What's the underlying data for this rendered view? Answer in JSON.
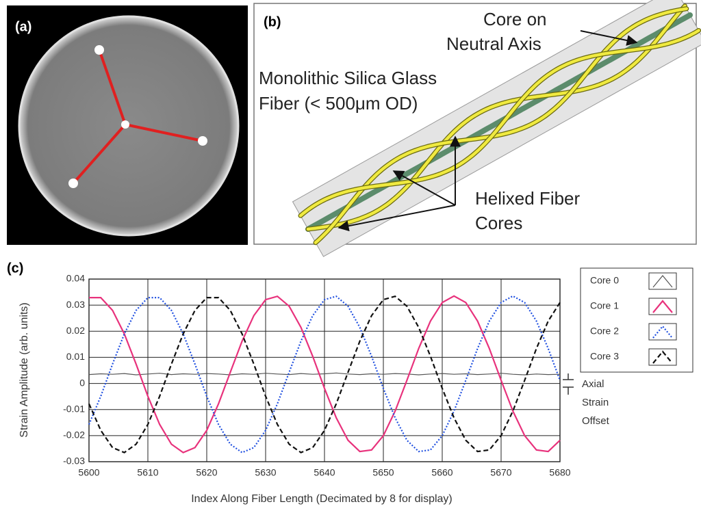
{
  "panel_a": {
    "label": "(a)"
  },
  "panel_b": {
    "label": "(b)",
    "core_label": [
      "Core on",
      "Neutral Axis"
    ],
    "fiber_label": [
      "Monolithic Silica Glass",
      "Fiber (< 500μm OD)"
    ],
    "helix_label": [
      "Helixed Fiber",
      "Cores"
    ]
  },
  "chart_data": {
    "type": "line",
    "label": "(c)",
    "x_label": "Index Along Fiber Length (Decimated by 8 for display)",
    "y_label": "Strain Amplitude (arb. units)",
    "annotation": [
      "Axial",
      "Strain",
      "Offset"
    ],
    "xlim": [
      5600,
      5680
    ],
    "xticks": [
      5600,
      5610,
      5620,
      5630,
      5640,
      5650,
      5660,
      5670,
      5680
    ],
    "ylim": [
      -0.03,
      0.04
    ],
    "yticks": [
      -0.03,
      -0.02,
      -0.01,
      0,
      0.01,
      0.02,
      0.03,
      0.04
    ],
    "grid": true,
    "legend": "right",
    "x": [
      5600,
      5602,
      5604,
      5606,
      5608,
      5610,
      5612,
      5614,
      5616,
      5618,
      5620,
      5622,
      5624,
      5626,
      5628,
      5630,
      5632,
      5634,
      5636,
      5638,
      5640,
      5642,
      5644,
      5646,
      5648,
      5650,
      5652,
      5654,
      5656,
      5658,
      5660,
      5662,
      5664,
      5666,
      5668,
      5670,
      5672,
      5674,
      5676,
      5678,
      5680
    ],
    "series": [
      {
        "name": "Core 0",
        "color": "#555555",
        "style": "solid",
        "values": [
          0.0034,
          0.0037,
          0.0035,
          0.0038,
          0.0033,
          0.0036,
          0.0039,
          0.0034,
          0.0037,
          0.0035,
          0.0038,
          0.0036,
          0.0033,
          0.0037,
          0.0035,
          0.0039,
          0.0036,
          0.0034,
          0.0038,
          0.0035,
          0.0037,
          0.004,
          0.0036,
          0.0034,
          0.0037,
          0.0035,
          0.0038,
          0.0036,
          0.0033,
          0.0036,
          0.0038,
          0.0035,
          0.0037,
          0.0034,
          0.0036,
          0.0039,
          0.0035,
          0.0033,
          0.0036,
          0.0034,
          0.0035
        ]
      },
      {
        "name": "Core 1",
        "color": "#e8327c",
        "style": "solid",
        "values": [
          0.0329,
          0.0329,
          0.028,
          0.019,
          0.0074,
          -0.0049,
          -0.0157,
          -0.0233,
          -0.0265,
          -0.0246,
          -0.018,
          -0.0078,
          0.0043,
          0.0162,
          0.026,
          0.0321,
          0.0334,
          0.0296,
          0.0215,
          0.0104,
          -0.0019,
          -0.0132,
          -0.0218,
          -0.0261,
          -0.0255,
          -0.02,
          -0.0106,
          0.0012,
          0.0134,
          0.0239,
          0.031,
          0.0335,
          0.031,
          0.0239,
          0.0134,
          0.0012,
          -0.0106,
          -0.02,
          -0.0255,
          -0.0261,
          -0.0218
        ]
      },
      {
        "name": "Core 2",
        "color": "#1f4fe0",
        "style": "dotted",
        "values": [
          -0.0157,
          -0.0049,
          0.0074,
          0.019,
          0.028,
          0.0329,
          0.0329,
          0.028,
          0.019,
          0.0074,
          -0.0049,
          -0.0157,
          -0.0233,
          -0.0265,
          -0.0246,
          -0.018,
          -0.0078,
          0.0043,
          0.0162,
          0.026,
          0.0321,
          0.0334,
          0.0296,
          0.0215,
          0.0104,
          -0.0019,
          -0.0132,
          -0.0218,
          -0.0261,
          -0.0255,
          -0.02,
          -0.0106,
          0.0012,
          0.0134,
          0.0239,
          0.031,
          0.0335,
          0.031,
          0.0239,
          0.0134,
          0.0012
        ]
      },
      {
        "name": "Core 3",
        "color": "#111111",
        "style": "dashed",
        "values": [
          -0.0078,
          -0.018,
          -0.0246,
          -0.0265,
          -0.0233,
          -0.0157,
          -0.0049,
          0.0074,
          0.019,
          0.028,
          0.0329,
          0.0329,
          0.028,
          0.019,
          0.0074,
          -0.0049,
          -0.0157,
          -0.0233,
          -0.0265,
          -0.0246,
          -0.018,
          -0.0078,
          0.0043,
          0.0162,
          0.026,
          0.0321,
          0.0334,
          0.0296,
          0.0215,
          0.0104,
          -0.0019,
          -0.0132,
          -0.0218,
          -0.0261,
          -0.0255,
          -0.02,
          -0.0106,
          0.0012,
          0.0134,
          0.0239,
          0.031
        ]
      }
    ]
  }
}
